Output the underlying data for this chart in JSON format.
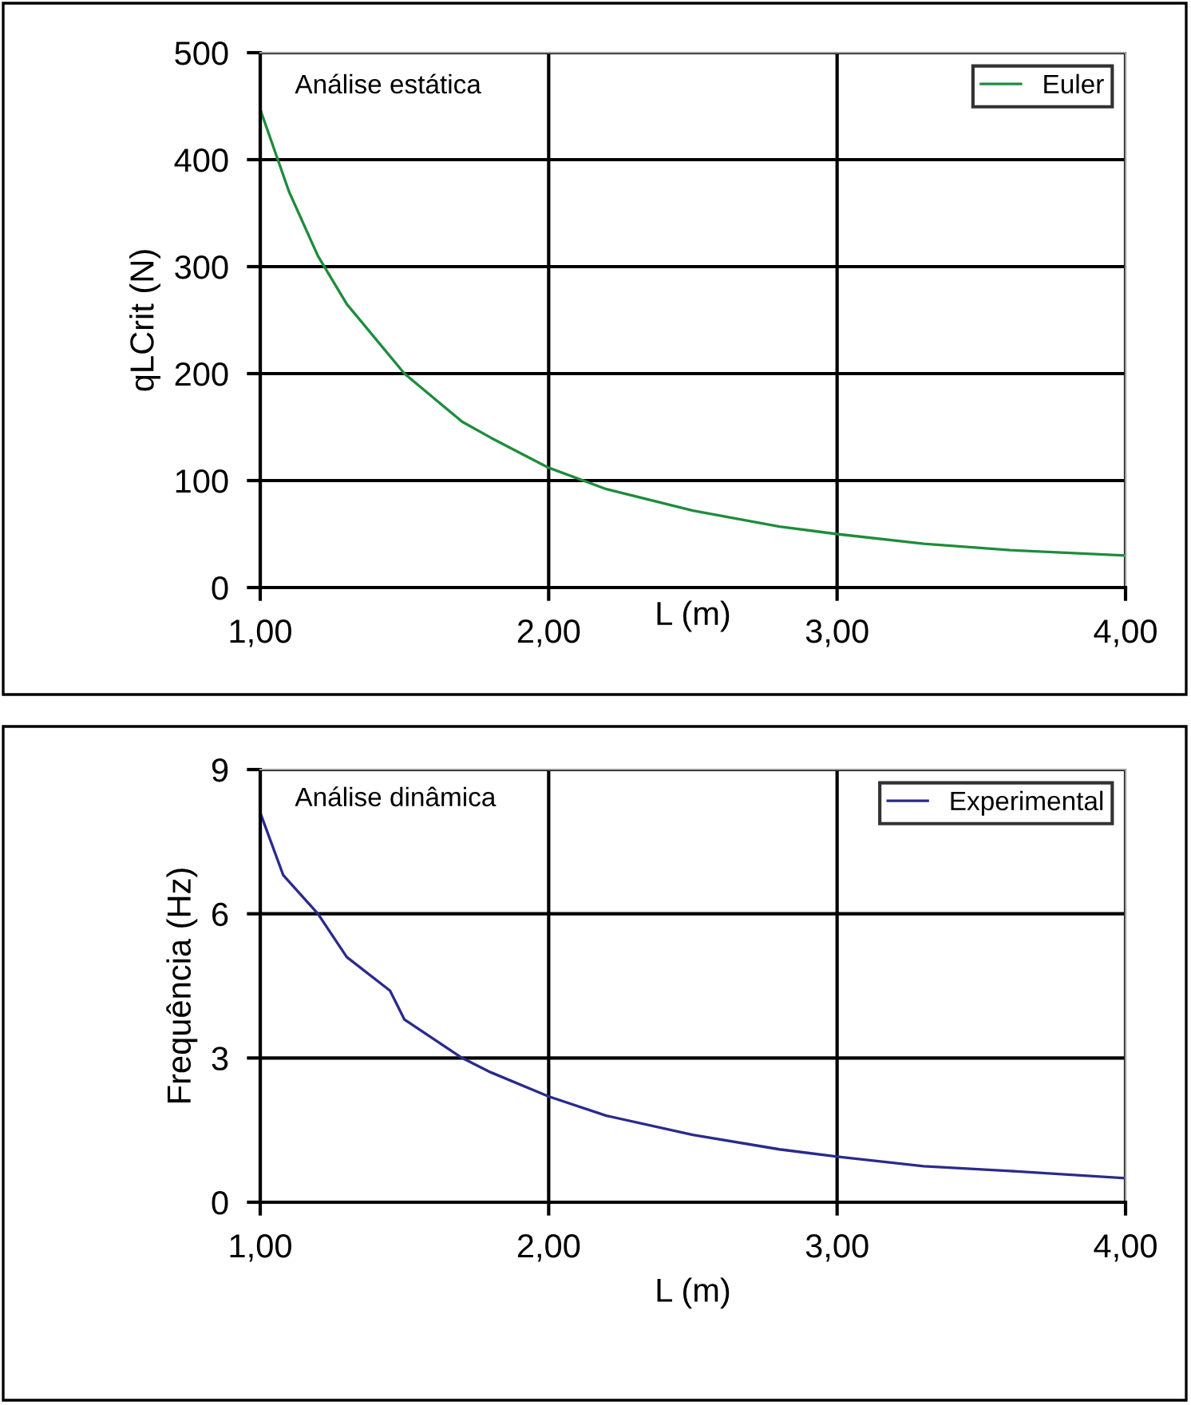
{
  "chart_data": [
    {
      "type": "line",
      "ylabel": "qLCrit (N)",
      "xlabel": "L (m)",
      "annotations": [
        "Análise estática"
      ],
      "legend": "top right",
      "grid": true,
      "xlim": [
        1,
        4
      ],
      "xticks": [
        {
          "value": 1,
          "label": "1,00"
        },
        {
          "value": 2,
          "label": "2,00"
        },
        {
          "value": 3,
          "label": "3,00"
        },
        {
          "value": 4,
          "label": "4,00"
        }
      ],
      "ylim": [
        0,
        500
      ],
      "yticks": [
        0,
        100,
        200,
        300,
        400,
        500
      ],
      "series": [
        {
          "name": "Euler",
          "color": "#1e8c3c",
          "x": [
            1.0,
            1.1,
            1.2,
            1.3,
            1.5,
            1.7,
            1.8,
            2.0,
            2.2,
            2.5,
            2.8,
            3.0,
            3.3,
            3.6,
            4.0
          ],
          "values": [
            447,
            370,
            310,
            265,
            200,
            155,
            140,
            112,
            92,
            72,
            57,
            50,
            41,
            35,
            30
          ]
        }
      ]
    },
    {
      "type": "line",
      "ylabel": "Frequência (Hz)",
      "xlabel": "L (m)",
      "annotations": [
        "Análise dinâmica"
      ],
      "legend": "top right",
      "grid": true,
      "xlim": [
        1,
        4
      ],
      "xticks": [
        {
          "value": 1,
          "label": "1,00"
        },
        {
          "value": 2,
          "label": "2,00"
        },
        {
          "value": 3,
          "label": "3,00"
        },
        {
          "value": 4,
          "label": "4,00"
        }
      ],
      "ylim": [
        0,
        9
      ],
      "yticks": [
        0,
        3,
        6,
        9
      ],
      "series": [
        {
          "name": "Experimental",
          "color": "#2a2a8c",
          "x": [
            1.0,
            1.08,
            1.2,
            1.3,
            1.45,
            1.5,
            1.7,
            1.8,
            2.0,
            2.2,
            2.5,
            2.8,
            3.0,
            3.3,
            3.6,
            4.0
          ],
          "values": [
            8.1,
            6.8,
            6.0,
            5.1,
            4.4,
            3.8,
            3.0,
            2.7,
            2.2,
            1.8,
            1.4,
            1.1,
            0.95,
            0.75,
            0.65,
            0.5
          ]
        }
      ]
    }
  ]
}
